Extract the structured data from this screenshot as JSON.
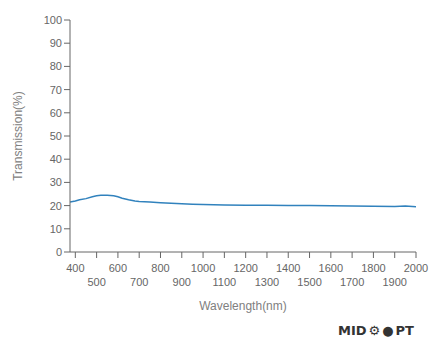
{
  "chart_data": {
    "type": "line",
    "xlabel": "Wavelength(nm)",
    "ylabel": "Transmission(%)",
    "x": [
      375,
      400,
      420,
      450,
      480,
      500,
      520,
      550,
      580,
      600,
      620,
      650,
      680,
      700,
      750,
      800,
      850,
      900,
      950,
      1000,
      1100,
      1200,
      1300,
      1400,
      1500,
      1600,
      1700,
      1800,
      1900,
      1950,
      2000
    ],
    "values": [
      21.5,
      22.0,
      22.5,
      23.0,
      23.8,
      24.2,
      24.5,
      24.5,
      24.2,
      23.8,
      23.2,
      22.5,
      22.0,
      21.8,
      21.5,
      21.2,
      21.0,
      20.8,
      20.6,
      20.5,
      20.3,
      20.2,
      20.1,
      20.0,
      20.0,
      19.9,
      19.8,
      19.7,
      19.6,
      19.8,
      19.5
    ],
    "xlim": [
      375,
      2000
    ],
    "ylim": [
      0,
      100
    ],
    "xticks": [
      400,
      500,
      600,
      700,
      800,
      900,
      1000,
      1100,
      1200,
      1300,
      1400,
      1500,
      1600,
      1700,
      1800,
      1900,
      2000
    ],
    "yticks": [
      0,
      10,
      20,
      30,
      40,
      50,
      60,
      70,
      80,
      90,
      100
    ],
    "grid": false,
    "annotations": [
      "MID",
      "⚙",
      "●",
      "PT"
    ]
  }
}
